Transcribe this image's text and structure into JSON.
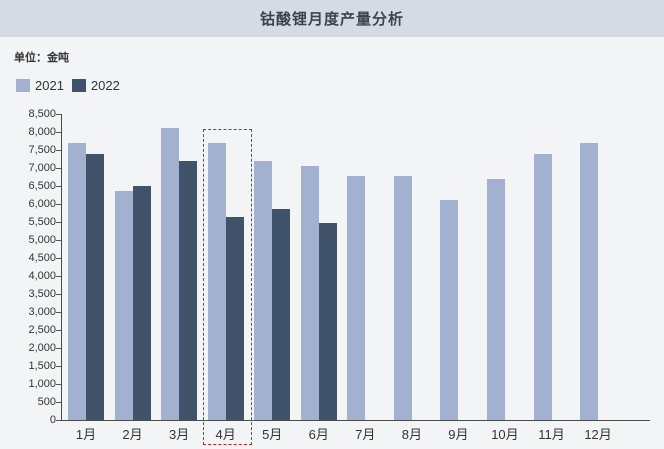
{
  "header": {
    "title": "钴酸锂月度产量分析"
  },
  "unit_label": "单位：金吨",
  "legend": {
    "items": [
      {
        "label": "2021",
        "color": "#A1B1CF"
      },
      {
        "label": "2022",
        "color": "#41526B"
      }
    ]
  },
  "chart_data": {
    "type": "bar",
    "title": "钴酸锂月度产量分析",
    "ylabel": "金吨",
    "categories": [
      "1月",
      "2月",
      "3月",
      "4月",
      "5月",
      "6月",
      "7月",
      "8月",
      "9月",
      "10月",
      "11月",
      "12月"
    ],
    "series": [
      {
        "name": "2021",
        "color": "#A1B1CF",
        "values": [
          7700,
          6350,
          8100,
          7700,
          7200,
          7050,
          6780,
          6780,
          6100,
          6700,
          7400,
          7700
        ]
      },
      {
        "name": "2022",
        "color": "#41526B",
        "values": [
          7400,
          6500,
          7200,
          5650,
          5850,
          5480,
          null,
          null,
          null,
          null,
          null,
          null
        ]
      }
    ],
    "ylim": [
      0,
      8500
    ],
    "ytick_step": 500,
    "grid": false,
    "legend_position": "top-left",
    "highlight_category": "4月",
    "highlight_color": "#CC2222"
  }
}
